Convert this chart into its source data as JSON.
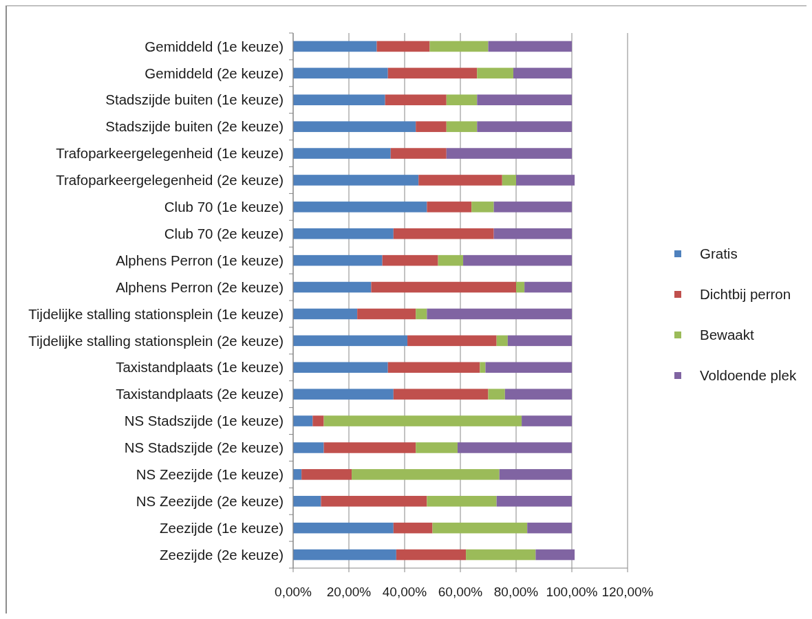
{
  "chart_data": {
    "type": "bar",
    "orientation": "horizontal",
    "stacked": true,
    "grid": "x",
    "legend": "right",
    "categories": [
      "Gemiddeld (1e keuze)",
      "Gemiddeld (2e keuze)",
      "Stadszijde buiten (1e keuze)",
      "Stadszijde buiten (2e keuze)",
      "Trafoparkeergelegenheid (1e keuze)",
      "Trafoparkeergelegenheid (2e keuze)",
      "Club 70 (1e keuze)",
      "Club 70 (2e keuze)",
      "Alphens Perron (1e keuze)",
      "Alphens Perron (2e keuze)",
      "Tijdelijke stalling stationsplein (1e keuze)",
      "Tijdelijke stalling stationsplein (2e keuze)",
      "Taxistandplaats (1e keuze)",
      "Taxistandplaats (2e keuze)",
      "NS Stadszijde (1e keuze)",
      "NS Stadszijde (2e keuze)",
      "NS Zeezijde (1e keuze)",
      "NS Zeezijde (2e keuze)",
      "Zeezijde (1e keuze)",
      "Zeezijde (2e keuze)"
    ],
    "series": [
      {
        "name": "Gratis",
        "color": "#4f81bd",
        "values": [
          30,
          34,
          33,
          44,
          35,
          45,
          48,
          36,
          32,
          28,
          23,
          41,
          34,
          36,
          7,
          11,
          3,
          10,
          36,
          37
        ]
      },
      {
        "name": "Dichtbij perron",
        "color": "#c0504d",
        "values": [
          19,
          32,
          22,
          11,
          20,
          30,
          16,
          36,
          20,
          52,
          21,
          32,
          33,
          34,
          4,
          33,
          18,
          38,
          14,
          25
        ]
      },
      {
        "name": "Bewaakt",
        "color": "#9bbb59",
        "values": [
          21,
          13,
          11,
          11,
          0,
          5,
          8,
          0,
          9,
          3,
          4,
          4,
          2,
          6,
          71,
          15,
          53,
          25,
          34,
          25
        ]
      },
      {
        "name": "Voldoende plek",
        "color": "#8064a2",
        "values": [
          30,
          21,
          34,
          34,
          45,
          21,
          28,
          28,
          39,
          17,
          52,
          23,
          31,
          24,
          18,
          41,
          26,
          27,
          16,
          14
        ]
      }
    ],
    "xlim": [
      0,
      120
    ],
    "xticks": [
      {
        "value": 0,
        "label": "0,00%"
      },
      {
        "value": 20,
        "label": "20,00%"
      },
      {
        "value": 40,
        "label": "40,00%"
      },
      {
        "value": 60,
        "label": "60,00%"
      },
      {
        "value": 80,
        "label": "80,00%"
      },
      {
        "value": 100,
        "label": "100,00%"
      },
      {
        "value": 120,
        "label": "120,00%"
      }
    ]
  }
}
